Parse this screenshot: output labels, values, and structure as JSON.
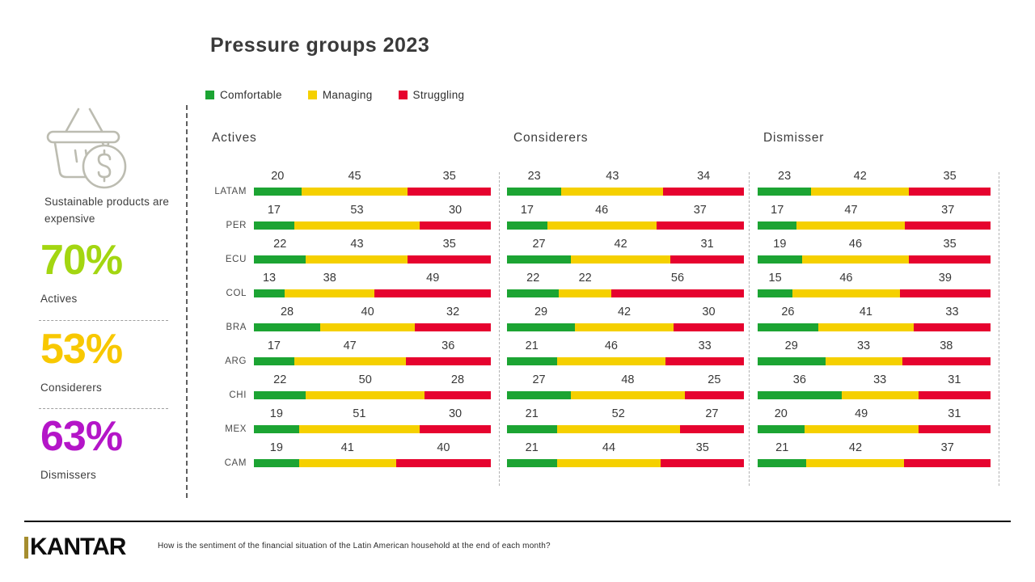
{
  "title": "Pressure groups 2023",
  "legend": [
    {
      "label": "Comfortable",
      "color": "#1ca433"
    },
    {
      "label": "Managing",
      "color": "#f5d000"
    },
    {
      "label": "Struggling",
      "color": "#e6032f"
    }
  ],
  "sidebar": {
    "icon": "basket-dollar-icon",
    "caption": "Sustainable products are expensive",
    "stats": [
      {
        "value": "70%",
        "label": "Actives",
        "color": "#a3d611"
      },
      {
        "value": "53%",
        "label": "Considerers",
        "color": "#f8c800"
      },
      {
        "value": "63%",
        "label": "Dismissers",
        "color": "#b415c8"
      }
    ]
  },
  "chart_data": {
    "type": "bar",
    "orientation": "horizontal-stacked",
    "categories": [
      "LATAM",
      "PER",
      "ECU",
      "COL",
      "BRA",
      "ARG",
      "CHI",
      "MEX",
      "CAM"
    ],
    "series_names": [
      "Comfortable",
      "Managing",
      "Struggling"
    ],
    "colors": {
      "comfortable": "#1ca433",
      "managing": "#f5d000",
      "struggling": "#e6032f"
    },
    "xlim": [
      0,
      100
    ],
    "panels": [
      {
        "title": "Actives",
        "rows": [
          [
            20,
            45,
            35
          ],
          [
            17,
            53,
            30
          ],
          [
            22,
            43,
            35
          ],
          [
            13,
            38,
            49
          ],
          [
            28,
            40,
            32
          ],
          [
            17,
            47,
            36
          ],
          [
            22,
            50,
            28
          ],
          [
            19,
            51,
            30
          ],
          [
            19,
            41,
            40
          ]
        ]
      },
      {
        "title": "Considerers",
        "rows": [
          [
            23,
            43,
            34
          ],
          [
            17,
            46,
            37
          ],
          [
            27,
            42,
            31
          ],
          [
            22,
            22,
            56
          ],
          [
            29,
            42,
            30
          ],
          [
            21,
            46,
            33
          ],
          [
            27,
            48,
            25
          ],
          [
            21,
            52,
            27
          ],
          [
            21,
            44,
            35
          ]
        ]
      },
      {
        "title": "Dismisser",
        "rows": [
          [
            23,
            42,
            35
          ],
          [
            17,
            47,
            37
          ],
          [
            19,
            46,
            35
          ],
          [
            15,
            46,
            39
          ],
          [
            26,
            41,
            33
          ],
          [
            29,
            33,
            38
          ],
          [
            36,
            33,
            31
          ],
          [
            20,
            49,
            31
          ],
          [
            21,
            42,
            37
          ]
        ]
      }
    ]
  },
  "footer": {
    "logo": "KANTAR",
    "question": "How is the sentiment of the financial situation of the Latin American household at the end of each month?"
  }
}
